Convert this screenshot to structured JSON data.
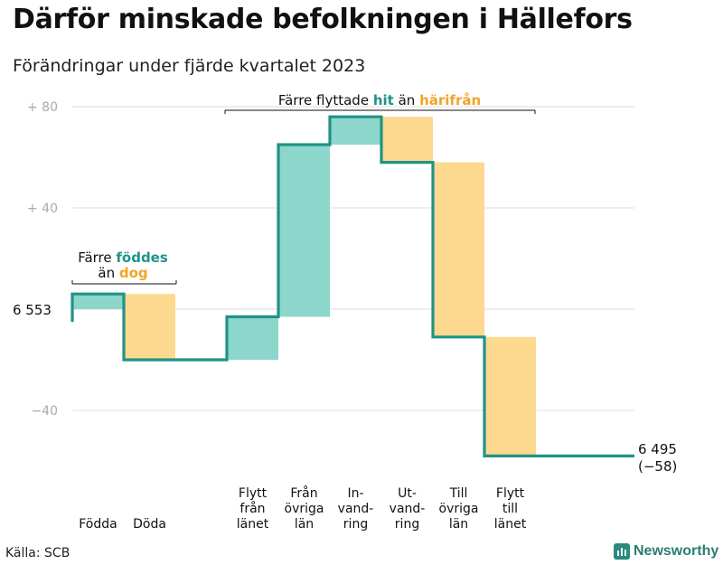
{
  "title": "Därför minskade befolkningen i Hällefors",
  "subtitle": "Förändringar under fjärde kvartalet 2023",
  "source": "Källa: SCB",
  "brand": "Newsworthy",
  "chart_data": {
    "type": "waterfall",
    "start_label": "6  553",
    "end_value_label": "6 495",
    "end_change_label": "(−58)",
    "y_tick_labels": [
      "+  80",
      "+  40",
      "−40"
    ],
    "ylim": [
      -60,
      85
    ],
    "grid": true,
    "colors": {
      "line": "#1f9386",
      "increase": "#8dd6cb",
      "decrease": "#fdd98f",
      "hit": "#1f9386",
      "harifran": "#f0a42a"
    },
    "steps": [
      {
        "label": [
          "Födda"
        ],
        "delta": 6,
        "kind": "increase"
      },
      {
        "label": [
          "Döda"
        ],
        "delta": -26,
        "kind": "decrease"
      },
      {
        "label": [
          "Flytt",
          "från",
          "länet"
        ],
        "delta": 17,
        "kind": "increase"
      },
      {
        "label": [
          "Från",
          "övriga",
          "län"
        ],
        "delta": 68,
        "kind": "increase"
      },
      {
        "label": [
          "In-",
          "vand-",
          "ring"
        ],
        "delta": 11,
        "kind": "increase"
      },
      {
        "label": [
          "Ut-",
          "vand-",
          "ring"
        ],
        "delta": -18,
        "kind": "decrease"
      },
      {
        "label": [
          "Till",
          "övriga",
          "län"
        ],
        "delta": -69,
        "kind": "decrease"
      },
      {
        "label": [
          "Flytt",
          "till",
          "länet"
        ],
        "delta": -47,
        "kind": "decrease"
      }
    ],
    "annotations": {
      "births": {
        "line1": "Färre",
        "hl1": "föddes",
        "line2": "än",
        "hl2": "dog"
      },
      "migration": {
        "w1": "Färre flyttade",
        "hl1": "hit",
        "w2": "än",
        "hl2": "härifrån"
      }
    }
  }
}
